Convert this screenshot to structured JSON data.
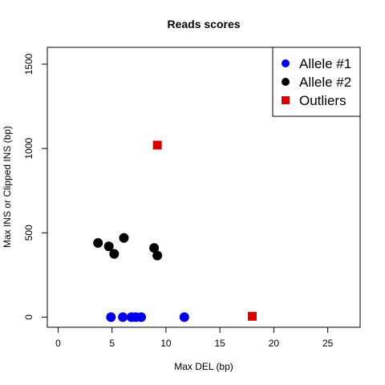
{
  "chart_data": {
    "type": "scatter",
    "title": "Reads scores",
    "xlabel": "Max DEL (bp)",
    "ylabel": "Max INS or Clipped INS (bp)",
    "xlim": [
      -1,
      28
    ],
    "ylim": [
      -60,
      1600
    ],
    "xticks": [
      0,
      5,
      10,
      15,
      20,
      25
    ],
    "yticks": [
      0,
      500,
      1000,
      1500
    ],
    "grid": false,
    "legend_position": "top-right",
    "series": [
      {
        "name": "Allele #1",
        "color": "#0000ee",
        "marker": "circle",
        "points": [
          [
            4.9,
            0
          ],
          [
            6.0,
            0
          ],
          [
            6.8,
            0
          ],
          [
            7.2,
            0
          ],
          [
            7.7,
            0
          ],
          [
            11.7,
            0
          ]
        ]
      },
      {
        "name": "Allele #2",
        "color": "#000000",
        "marker": "circle",
        "points": [
          [
            3.7,
            440
          ],
          [
            4.7,
            420
          ],
          [
            5.2,
            375
          ],
          [
            6.1,
            470
          ],
          [
            8.9,
            410
          ],
          [
            9.2,
            365
          ]
        ]
      },
      {
        "name": "Outliers",
        "color": "#dd0000",
        "marker": "square",
        "points": [
          [
            9.2,
            1020
          ],
          [
            18.0,
            5
          ]
        ]
      }
    ]
  }
}
